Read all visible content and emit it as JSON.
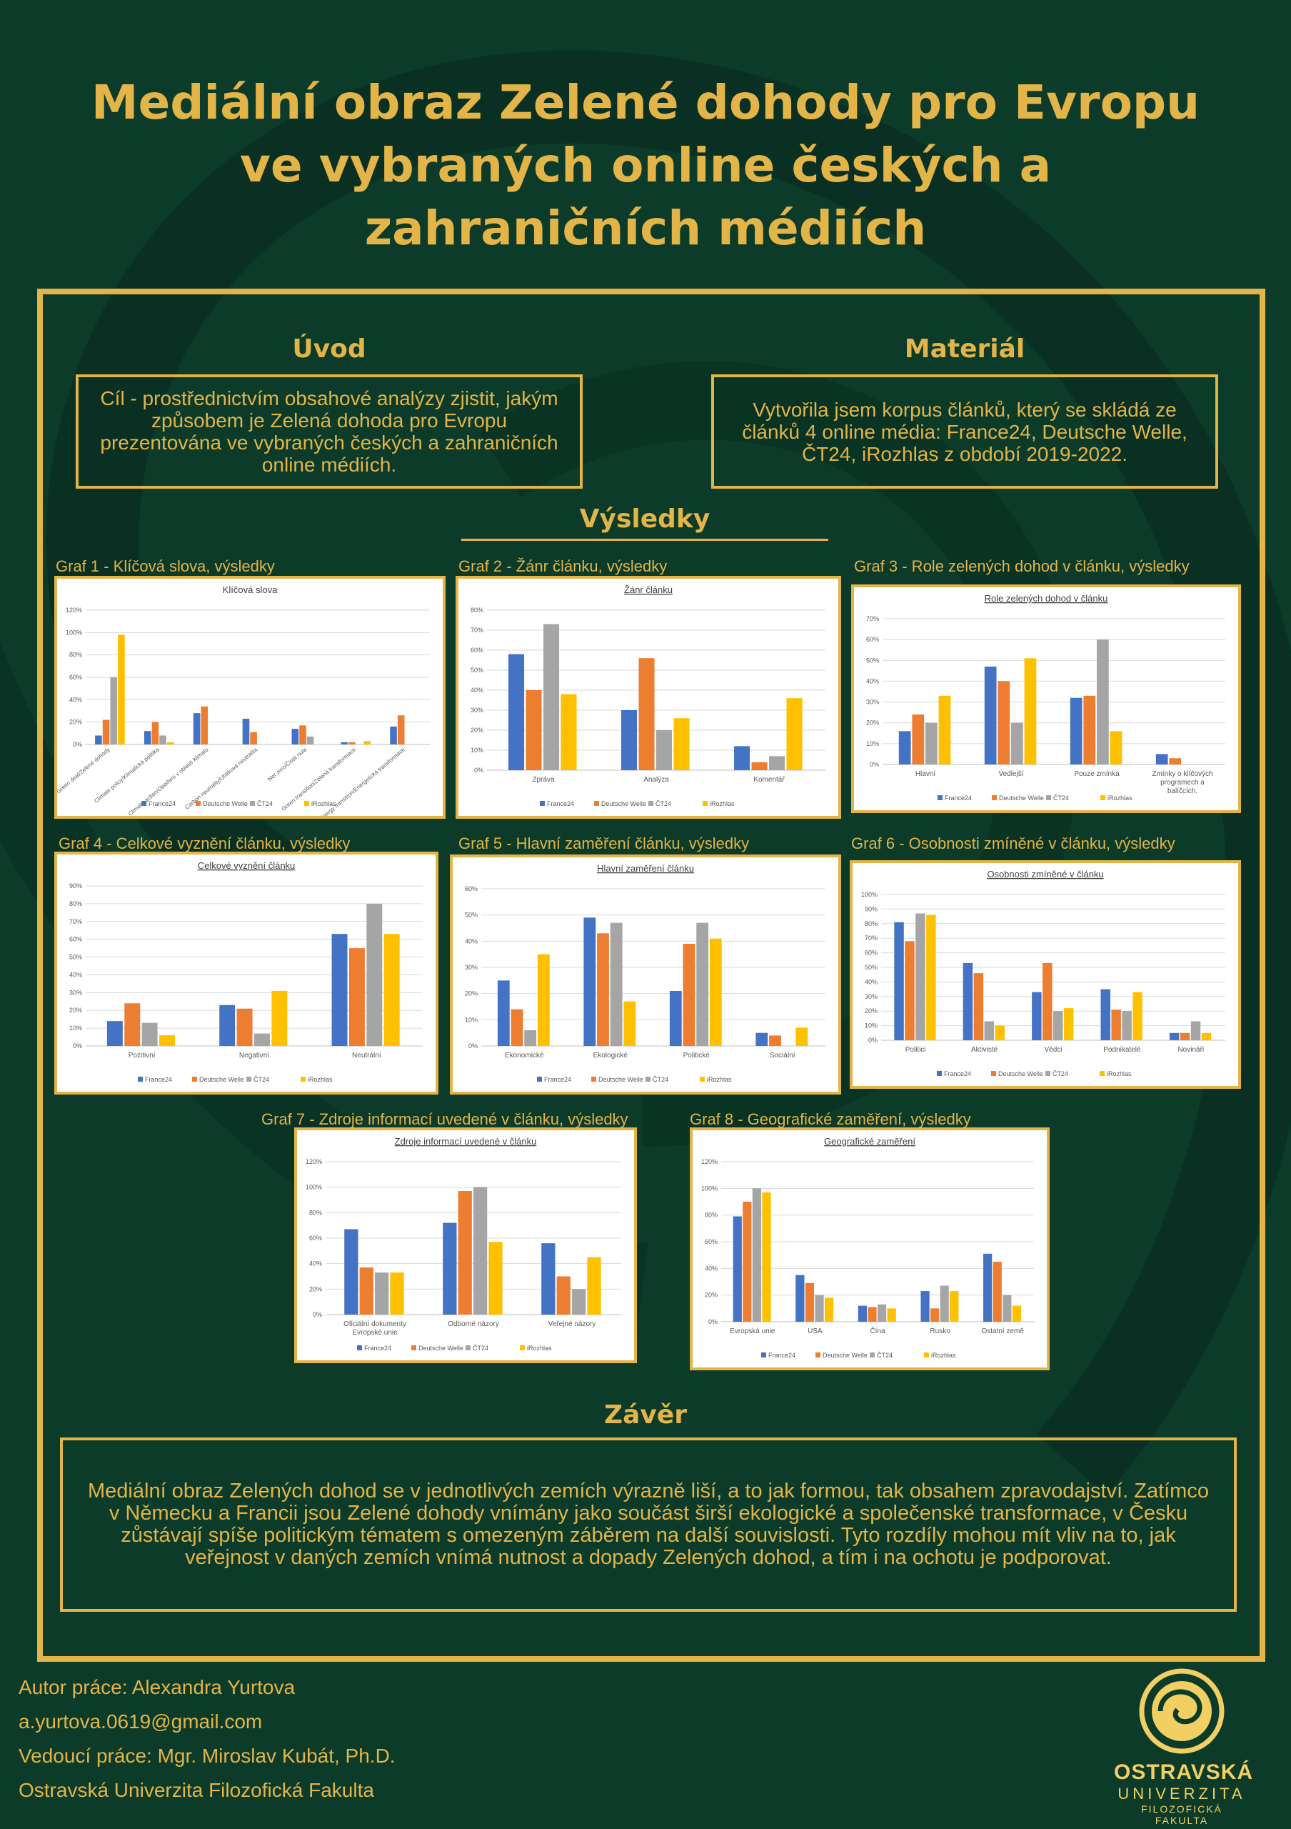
{
  "title": "Mediální obraz Zelené dohody pro Evropu ve vybraných online českých a zahraničních médiích",
  "intro": {
    "heading": "Úvod",
    "text": "Cíl - prostřednictvím obsahové analýzy zjistit, jakým způsobem je Zelená dohoda pro Evropu prezentována ve vybraných českých a zahraničních online médiích."
  },
  "material": {
    "heading": "Materiál",
    "text": "Vytvořila jsem korpus článků, který se skládá ze článků 4 online média: France24, Deutsche Welle, ČT24, iRozhlas z období 2019-2022."
  },
  "results": {
    "heading": "Výsledky"
  },
  "conclusion": {
    "heading": "Závěr",
    "text": "Mediální obraz Zelených dohod se v jednotlivých zemích výrazně liší, a to jak formou, tak obsahem zpravodajství. Zatímco v Německu a Francii jsou Zelené dohody vnímány jako součást širší ekologické a společenské transformace, v Česku zůstávají spíše politickým tématem s omezeným záběrem na další souvislosti. Tyto rozdíly mohou mít vliv na to, jak veřejnost v daných zemích vnímá nutnost a dopady Zelených dohod, a tím i na ochotu je podporovat."
  },
  "footer": {
    "author": "Autor práce: Alexandra Yurtova",
    "email": "a.yurtova.0619@gmail.com",
    "supervisor": "Vedoucí práce: Mgr. Miroslav Kubát, Ph.D.",
    "institution": "Ostravská Univerzita Filozofická Fakulta"
  },
  "logo": {
    "line1": "OSTRAVSKÁ",
    "line2": "UNIVERZITA",
    "line3": "FILOZOFICKÁ FAKULTA"
  },
  "colors": {
    "background": "#0c3b2a",
    "accent": "#e3b448",
    "France24": "#4472c4",
    "Deutsche Welle": "#ed7d31",
    "ČT24": "#a5a5a5",
    "iRozhlas": "#ffc000"
  },
  "graph_titles": [
    "Graf 1 - Klíčová slova, výsledky",
    "Graf 2 - Žánr článku, výsledky",
    "Graf 3 - Role zelených dohod  v článku, výsledky",
    "Graf 4 - Celkové vyznění článku, výsledky",
    "Graf 5 - Hlavní zaměření článku, výsledky",
    "Graf 6 - Osobnosti zmíněné v článku, výsledky",
    "Graf 7 - Zdroje informací uvedené v článku, výsledky",
    "Graf 8 - Geografické zaměření, výsledky"
  ],
  "chart_data": [
    {
      "type": "bar",
      "title": "Klíčová slova",
      "underline": false,
      "rotate": true,
      "ylim": [
        0,
        1.2
      ],
      "ytick_step": 0.2,
      "categories": [
        "Green deal/Zelené dohody",
        "Climate policy/Klimatická politika",
        "Climate action/Opatření v oblasti klimatu",
        "Carbon neutrality/Uhlíková neutralita",
        "Net zero/Čistá nula",
        "Green transition/Zelená transformace",
        "Energy transition/Energetická transformace"
      ],
      "series": [
        {
          "name": "France24",
          "values": [
            0.08,
            0.12,
            0.28,
            0.23,
            0.14,
            0.02,
            0.16
          ]
        },
        {
          "name": "Deutsche Welle",
          "values": [
            0.22,
            0.2,
            0.34,
            0.11,
            0.17,
            0.02,
            0.26
          ]
        },
        {
          "name": "ČT24",
          "values": [
            0.6,
            0.08,
            0.0,
            0.0,
            0.07,
            0.0,
            0.0
          ]
        },
        {
          "name": "iRozhlas",
          "values": [
            0.98,
            0.02,
            0.0,
            0.0,
            0.0,
            0.03,
            0.0
          ]
        }
      ]
    },
    {
      "type": "bar",
      "title": "Žánr článku",
      "underline": true,
      "rotate": false,
      "ylim": [
        0,
        0.8
      ],
      "ytick_step": 0.1,
      "categories": [
        "Zpráva",
        "Analýza",
        "Komentář"
      ],
      "series": [
        {
          "name": "France24",
          "values": [
            0.58,
            0.3,
            0.12
          ]
        },
        {
          "name": "Deutsche Welle",
          "values": [
            0.4,
            0.56,
            0.04
          ]
        },
        {
          "name": "ČT24",
          "values": [
            0.73,
            0.2,
            0.07
          ]
        },
        {
          "name": "iRozhlas",
          "values": [
            0.38,
            0.26,
            0.36
          ]
        }
      ]
    },
    {
      "type": "bar",
      "title": "Role zelených dohod  v článku",
      "underline": true,
      "rotate": false,
      "ylim": [
        0,
        0.7
      ],
      "ytick_step": 0.1,
      "categories": [
        "Hlavní",
        "Vedlejší",
        "Pouze zmínka",
        "Zmínky o klíčových programech a balíčcích."
      ],
      "series": [
        {
          "name": "France24",
          "values": [
            0.16,
            0.47,
            0.32,
            0.05
          ]
        },
        {
          "name": "Deutsche Welle",
          "values": [
            0.24,
            0.4,
            0.33,
            0.03
          ]
        },
        {
          "name": "ČT24",
          "values": [
            0.2,
            0.2,
            0.6,
            0.0
          ]
        },
        {
          "name": "iRozhlas",
          "values": [
            0.33,
            0.51,
            0.16,
            0.0
          ]
        }
      ]
    },
    {
      "type": "bar",
      "title": "Celkové vyznění článku",
      "underline": true,
      "rotate": false,
      "ylim": [
        0,
        0.9
      ],
      "ytick_step": 0.1,
      "categories": [
        "Pozitivní",
        "Negativní",
        "Neutrální"
      ],
      "series": [
        {
          "name": "France24",
          "values": [
            0.14,
            0.23,
            0.63
          ]
        },
        {
          "name": "Deutsche Welle",
          "values": [
            0.24,
            0.21,
            0.55
          ]
        },
        {
          "name": "ČT24",
          "values": [
            0.13,
            0.07,
            0.8
          ]
        },
        {
          "name": "iRozhlas",
          "values": [
            0.06,
            0.31,
            0.63
          ]
        }
      ]
    },
    {
      "type": "bar",
      "title": "Hlavní zaměření článku",
      "underline": true,
      "rotate": false,
      "ylim": [
        0,
        0.6
      ],
      "ytick_step": 0.1,
      "categories": [
        "Ekonomické",
        "Ekologické",
        "Politické",
        "Sociální"
      ],
      "series": [
        {
          "name": "France24",
          "values": [
            0.25,
            0.49,
            0.21,
            0.05
          ]
        },
        {
          "name": "Deutsche Welle",
          "values": [
            0.14,
            0.43,
            0.39,
            0.04
          ]
        },
        {
          "name": "ČT24",
          "values": [
            0.06,
            0.47,
            0.47,
            0.0
          ]
        },
        {
          "name": "iRozhlas",
          "values": [
            0.35,
            0.17,
            0.41,
            0.07
          ]
        }
      ]
    },
    {
      "type": "bar",
      "title": "Osobnosti zmíněné v článku",
      "underline": true,
      "rotate": false,
      "ylim": [
        0,
        1.0
      ],
      "ytick_step": 0.1,
      "categories": [
        "Politici",
        "Aktivisté",
        "Vědci",
        "Podnikatelé",
        "Novináři"
      ],
      "series": [
        {
          "name": "France24",
          "values": [
            0.81,
            0.53,
            0.33,
            0.35,
            0.05
          ]
        },
        {
          "name": "Deutsche Welle",
          "values": [
            0.68,
            0.46,
            0.53,
            0.21,
            0.05
          ]
        },
        {
          "name": "ČT24",
          "values": [
            0.87,
            0.13,
            0.2,
            0.2,
            0.13
          ]
        },
        {
          "name": "iRozhlas",
          "values": [
            0.86,
            0.1,
            0.22,
            0.33,
            0.05
          ]
        }
      ]
    },
    {
      "type": "bar",
      "title": "Zdroje informací uvedené v článku",
      "underline": true,
      "rotate": false,
      "ylim": [
        0,
        1.2
      ],
      "ytick_step": 0.2,
      "categories": [
        "Oficiální dokumenty Evropské unie",
        "Odborné názory",
        "Veřejné názory"
      ],
      "series": [
        {
          "name": "France24",
          "values": [
            0.67,
            0.72,
            0.56
          ]
        },
        {
          "name": "Deutsche Welle",
          "values": [
            0.37,
            0.97,
            0.3
          ]
        },
        {
          "name": "ČT24",
          "values": [
            0.33,
            1.0,
            0.2
          ]
        },
        {
          "name": "iRozhlas",
          "values": [
            0.33,
            0.57,
            0.45
          ]
        }
      ]
    },
    {
      "type": "bar",
      "title": "Geografické zaměření",
      "underline": true,
      "rotate": false,
      "ylim": [
        0,
        1.2
      ],
      "ytick_step": 0.2,
      "categories": [
        "Evropská unie",
        "USA",
        "Čína",
        "Rusko",
        "Ostatní země"
      ],
      "series": [
        {
          "name": "France24",
          "values": [
            0.79,
            0.35,
            0.12,
            0.23,
            0.51
          ]
        },
        {
          "name": "Deutsche Welle",
          "values": [
            0.9,
            0.29,
            0.11,
            0.1,
            0.45
          ]
        },
        {
          "name": "ČT24",
          "values": [
            1.0,
            0.2,
            0.13,
            0.27,
            0.2
          ]
        },
        {
          "name": "iRozhlas",
          "values": [
            0.97,
            0.18,
            0.1,
            0.23,
            0.12
          ]
        }
      ]
    }
  ]
}
